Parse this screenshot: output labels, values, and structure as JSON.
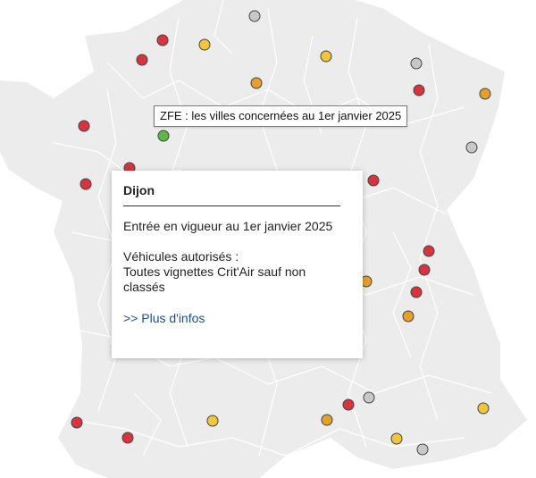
{
  "map_title": "ZFE : les villes concernées au 1er janvier 2025",
  "colors": {
    "land": "#ececec",
    "border": "#ffffff",
    "red": "#d7343f",
    "yellow": "#f1c63d",
    "orange": "#e4a02c",
    "gray": "#c8c8c8",
    "green": "#5cb848"
  },
  "popup": {
    "city": "Dijon",
    "date_text": "Entrée en vigueur au 1er janvier 2025",
    "vehicles_label": "Véhicules autorisés :",
    "vehicles_text": "Toutes vignettes Crit'Air sauf non classés",
    "link_text": ">> Plus d'infos"
  },
  "markers": [
    {
      "color": "gray"
    },
    {
      "color": "red"
    },
    {
      "color": "yellow"
    },
    {
      "color": "red"
    },
    {
      "color": "yellow"
    },
    {
      "color": "gray"
    },
    {
      "color": "orange"
    },
    {
      "color": "red"
    },
    {
      "color": "orange"
    },
    {
      "color": "red"
    },
    {
      "color": "green"
    },
    {
      "color": "gray"
    },
    {
      "color": "red"
    },
    {
      "color": "red"
    },
    {
      "color": "red"
    },
    {
      "color": "red"
    },
    {
      "color": "red"
    },
    {
      "color": "orange"
    },
    {
      "color": "red"
    },
    {
      "color": "orange"
    },
    {
      "color": "gray"
    },
    {
      "color": "red"
    },
    {
      "color": "yellow"
    },
    {
      "color": "red"
    },
    {
      "color": "red"
    },
    {
      "color": "yellow"
    },
    {
      "color": "orange"
    },
    {
      "color": "yellow"
    },
    {
      "color": "gray"
    }
  ]
}
